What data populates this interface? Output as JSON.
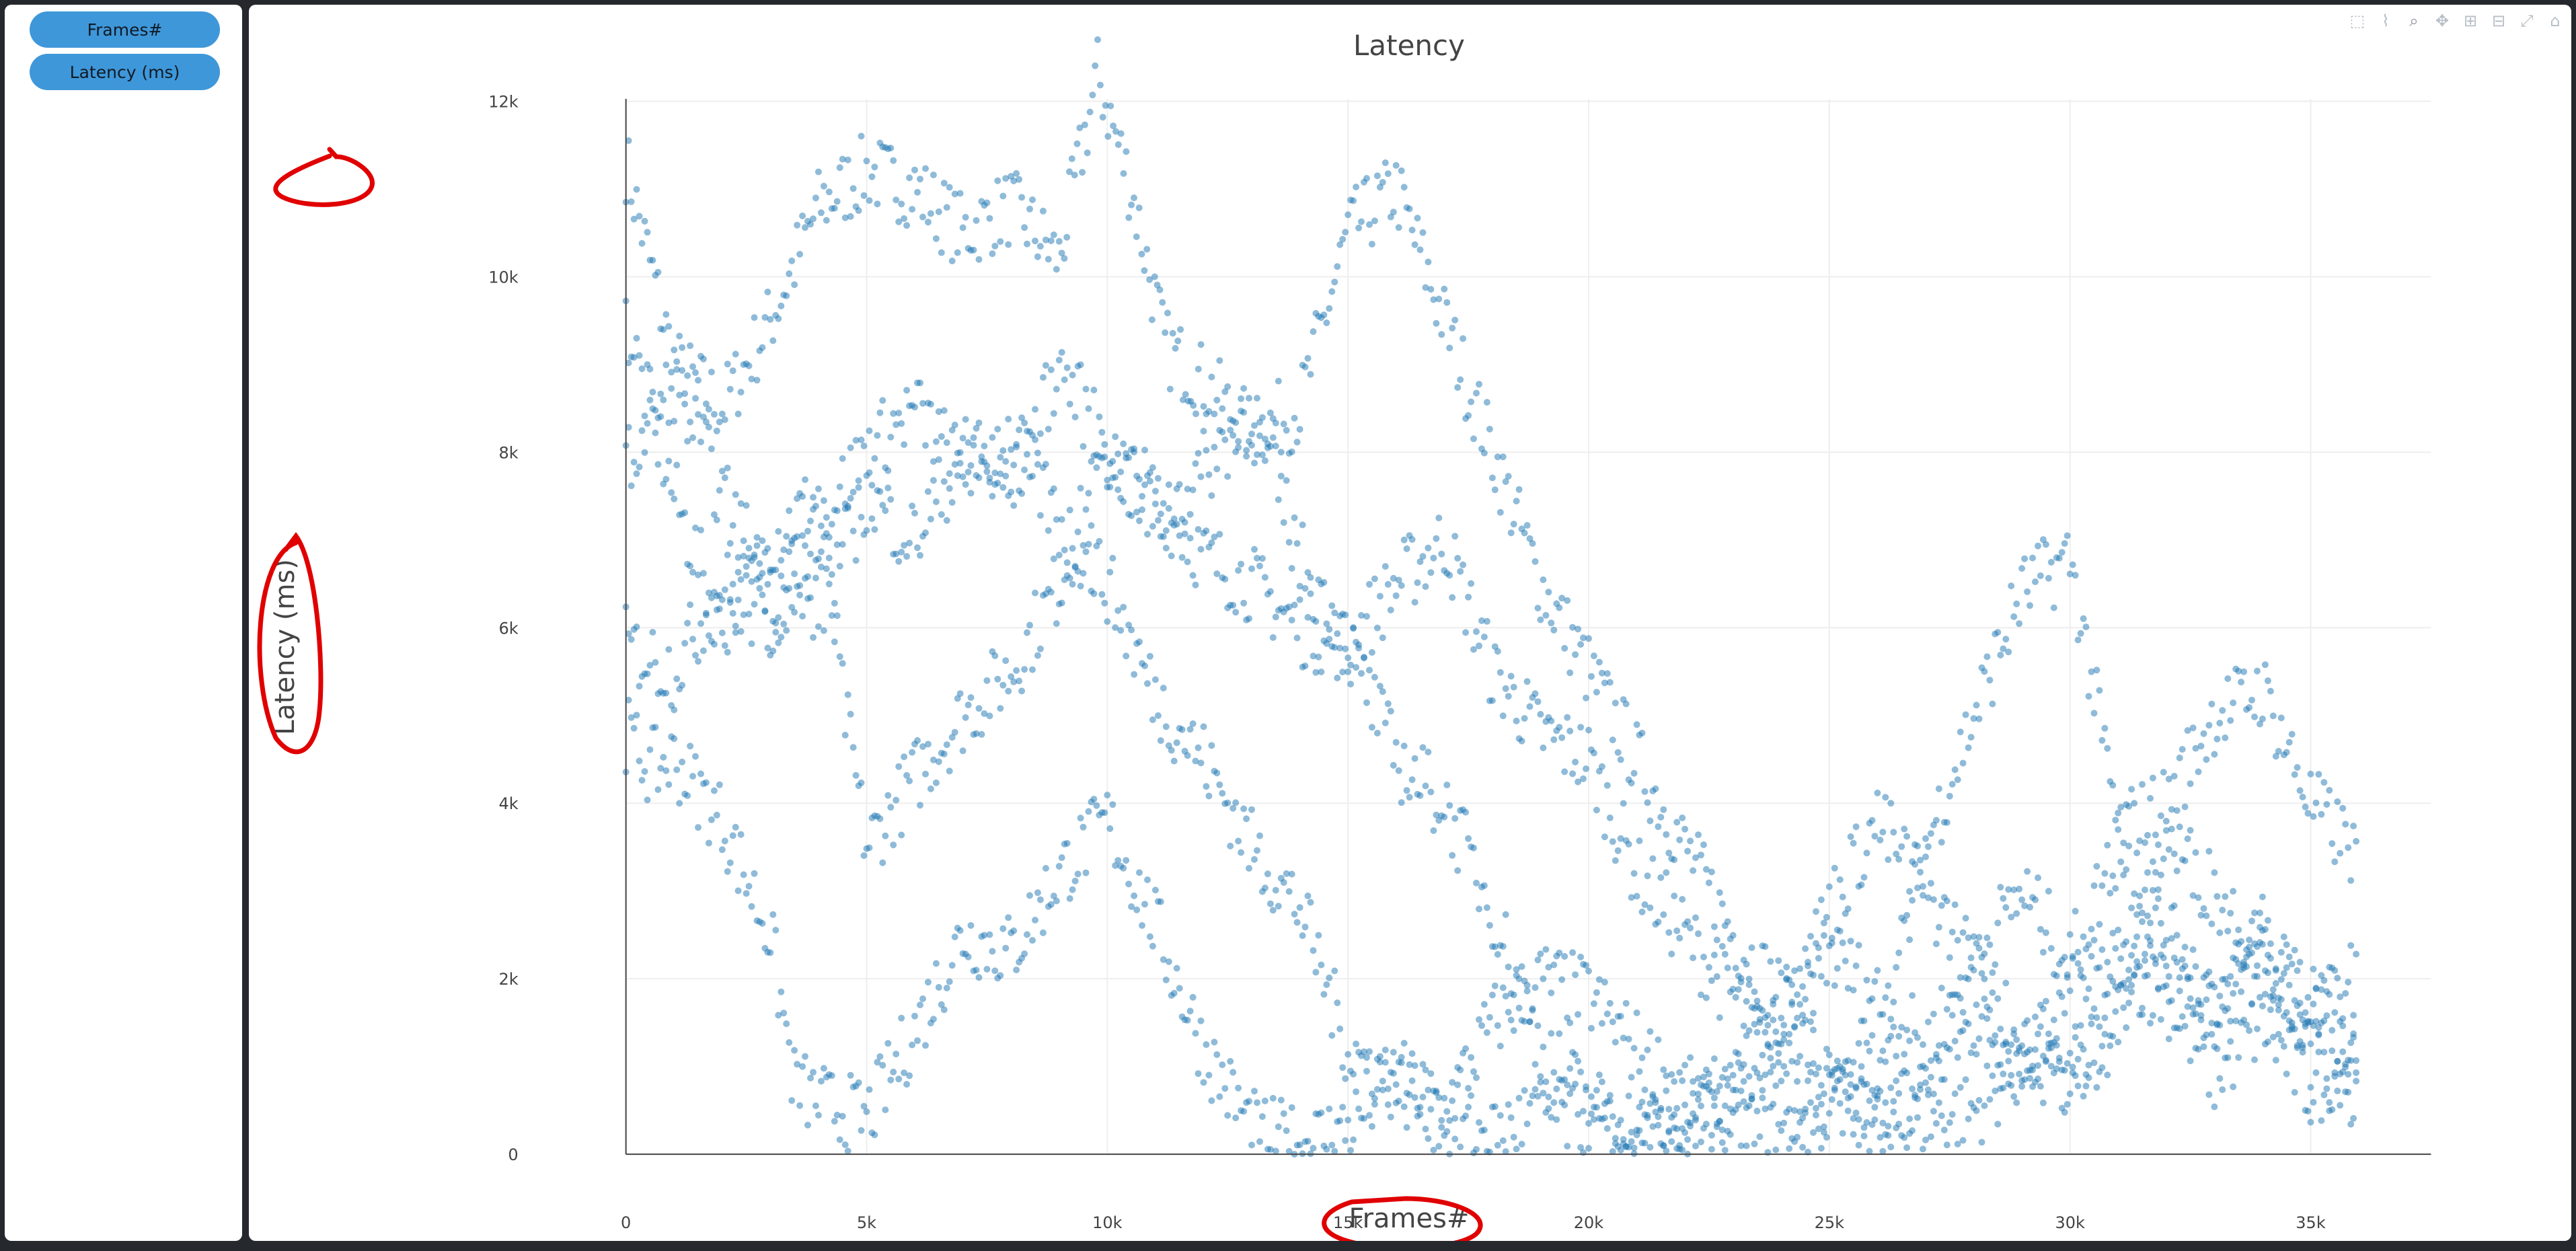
{
  "sidebar": {
    "buttons": [
      {
        "label": "Frames#"
      },
      {
        "label": "Latency (ms)"
      }
    ]
  },
  "modebar": {
    "icons": [
      "box-select-icon",
      "lasso-icon",
      "zoom-icon",
      "pan-icon",
      "zoom-in-icon",
      "zoom-out-icon",
      "autoscale-icon",
      "reset-axes-icon"
    ]
  },
  "colors": {
    "marker": "#1f77b4",
    "grid": "#eeeeee",
    "axis": "#444444",
    "annotation": "#e00000"
  },
  "chart_data": {
    "type": "scatter",
    "title": "Latency",
    "xlabel": "Frames#",
    "ylabel": "Latency (ms)",
    "xlim": [
      -3600,
      38500
    ],
    "ylim": [
      -850,
      13100
    ],
    "x_ticks": [
      {
        "value": 0,
        "label": "0"
      },
      {
        "value": 5000,
        "label": "5k"
      },
      {
        "value": 10000,
        "label": "10k"
      },
      {
        "value": 15000,
        "label": "15k"
      },
      {
        "value": 20000,
        "label": "20k"
      },
      {
        "value": 25000,
        "label": "25k"
      },
      {
        "value": 30000,
        "label": "30k"
      },
      {
        "value": 35000,
        "label": "35k"
      }
    ],
    "y_ticks": [
      {
        "value": 0,
        "label": "0"
      },
      {
        "value": 2000,
        "label": "2k"
      },
      {
        "value": 4000,
        "label": "4k"
      },
      {
        "value": 6000,
        "label": "6k"
      },
      {
        "value": 8000,
        "label": "8k"
      },
      {
        "value": 10000,
        "label": "10k"
      },
      {
        "value": 12000,
        "label": "12k"
      }
    ],
    "grid": true,
    "legend": "none",
    "series": [
      {
        "x": [
          0,
          1000,
          2000,
          3000,
          4000,
          5000,
          6000,
          7000,
          8000,
          9000,
          9800,
          10500,
          11200,
          12000,
          13000,
          14000,
          15000,
          16000,
          17000,
          18000,
          19000,
          20000,
          21000,
          22000,
          23000,
          24000,
          25000,
          26000,
          27000,
          28000,
          29000,
          30000,
          31000,
          32000,
          33000,
          34000,
          35000,
          36000
        ],
        "y": [
          11300,
          9000,
          8500,
          9500,
          10800,
          11200,
          11000,
          10500,
          10800,
          10200,
          12300,
          11000,
          9200,
          8800,
          8200,
          8500,
          10500,
          11000,
          9500,
          8000,
          6500,
          5500,
          4500,
          3500,
          2500,
          1800,
          800,
          400,
          800,
          1500,
          1200,
          800,
          1800,
          2200,
          1600,
          2500,
          1200,
          700
        ]
      },
      {
        "x": [
          0,
          1000,
          2000,
          3000,
          4000,
          4500,
          5000,
          6000,
          7000,
          8000,
          9000,
          10000,
          11000,
          12000,
          13000,
          14000,
          15000,
          16000,
          17000,
          18000,
          19000,
          20000,
          21000,
          22000,
          23000,
          24000,
          25000,
          26000,
          27000,
          28000,
          29000,
          30000,
          31000,
          32000,
          33000,
          34000,
          35000,
          36000
        ],
        "y": [
          9500,
          7500,
          6000,
          7000,
          7500,
          5200,
          3500,
          4300,
          5000,
          5500,
          6500,
          8000,
          7500,
          6800,
          6500,
          6000,
          5800,
          6500,
          7000,
          5500,
          4800,
          4500,
          3200,
          2500,
          1800,
          1000,
          600,
          300,
          400,
          500,
          1000,
          1800,
          2200,
          1800,
          900,
          1500,
          700,
          1200
        ]
      },
      {
        "x": [
          0,
          500,
          1000,
          2000,
          3000,
          3500,
          4000,
          5000,
          6000,
          7000,
          8000,
          9000,
          10000,
          11000,
          12000,
          13000,
          14000,
          15000,
          16000,
          17000,
          18000,
          19000,
          20000,
          21000,
          22000,
          23000,
          24000,
          25000,
          26000,
          27000,
          28000,
          29000,
          30000,
          31000,
          32000,
          33000,
          34000,
          35000,
          36000
        ],
        "y": [
          4800,
          4400,
          4500,
          3800,
          2500,
          800,
          600,
          400,
          1400,
          2500,
          2300,
          3200,
          3800,
          2600,
          1200,
          300,
          100,
          300,
          900,
          500,
          1500,
          2000,
          1800,
          1200,
          700,
          300,
          200,
          500,
          1100,
          3500,
          5000,
          6400,
          6800,
          3700,
          4000,
          5000,
          5300,
          4000,
          3400
        ]
      },
      {
        "x": [
          0,
          1000,
          2000,
          3000,
          4000,
          5000,
          6000,
          7000,
          8000,
          9000,
          10000,
          11000,
          12000,
          13000,
          14000,
          15000,
          16000,
          17000,
          18000,
          19000,
          20000,
          21000,
          22000,
          23000,
          24000,
          25000,
          26000,
          27000,
          28000,
          29000,
          30000,
          31000,
          32000,
          33000,
          34000,
          35000,
          36000
        ],
        "y": [
          5800,
          5500,
          6500,
          6000,
          7200,
          8000,
          8500,
          7800,
          8200,
          7200,
          6500,
          5200,
          4500,
          3500,
          2800,
          1200,
          800,
          400,
          200,
          500,
          300,
          100,
          400,
          800,
          1500,
          2300,
          1800,
          1200,
          2200,
          3000,
          2200,
          3500,
          2500,
          1800,
          2200,
          1500,
          2100
        ]
      },
      {
        "x": [
          0,
          1000,
          2000,
          3000,
          4000,
          5000,
          6000,
          7000,
          8000,
          9000,
          10000,
          11000,
          12000,
          13000,
          14000,
          15000,
          16000,
          17000,
          18000,
          19000,
          20000,
          21000,
          22000,
          23000,
          24000,
          25000,
          26000,
          27000,
          28000,
          29000,
          30000,
          31000,
          32000,
          33000,
          34000,
          35000,
          36000
        ],
        "y": [
          7800,
          8800,
          7500,
          6500,
          6200,
          7500,
          7000,
          8000,
          7500,
          9000,
          8000,
          7200,
          7800,
          8500,
          6800,
          5800,
          4500,
          4000,
          2800,
          1200,
          600,
          300,
          200,
          600,
          1500,
          2800,
          3800,
          3000,
          2200,
          1200,
          800,
          1500,
          3600,
          3000,
          2300,
          1800,
          900
        ]
      }
    ]
  },
  "annotations": [
    "ylabel-circle",
    "ytick-12k-circle",
    "xlabel-circle"
  ]
}
